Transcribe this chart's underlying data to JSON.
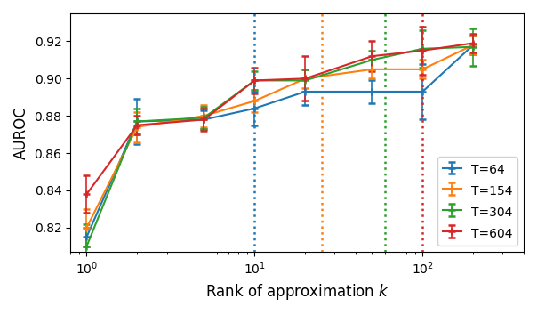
{
  "title": "",
  "xlabel": "Rank of approximation $k$",
  "ylabel": "AUROC",
  "xlim_log": [
    0.8,
    400
  ],
  "ylim": [
    0.807,
    0.935
  ],
  "series": {
    "T=64": {
      "color": "#1f77b4",
      "x": [
        1,
        2,
        5,
        10,
        20,
        50,
        100,
        200
      ],
      "y": [
        0.815,
        0.877,
        0.878,
        0.884,
        0.893,
        0.893,
        0.893,
        0.918
      ],
      "yerr": [
        0.005,
        0.012,
        0.005,
        0.009,
        0.007,
        0.006,
        0.015,
        0.005
      ],
      "vline_x": 10
    },
    "T=154": {
      "color": "#ff7f0e",
      "x": [
        1,
        2,
        5,
        10,
        20,
        50,
        100,
        200
      ],
      "y": [
        0.82,
        0.874,
        0.88,
        0.888,
        0.9,
        0.905,
        0.905,
        0.918
      ],
      "yerr": [
        0.01,
        0.008,
        0.006,
        0.006,
        0.005,
        0.005,
        0.005,
        0.005
      ],
      "vline_x": 25
    },
    "T=304": {
      "color": "#2ca02c",
      "x": [
        1,
        2,
        5,
        10,
        20,
        50,
        100,
        200
      ],
      "y": [
        0.81,
        0.877,
        0.879,
        0.899,
        0.899,
        0.91,
        0.916,
        0.917
      ],
      "yerr": [
        0.012,
        0.007,
        0.006,
        0.005,
        0.006,
        0.005,
        0.01,
        0.01
      ],
      "vline_x": 60
    },
    "T=604": {
      "color": "#d62728",
      "x": [
        1,
        2,
        5,
        10,
        20,
        50,
        100,
        200
      ],
      "y": [
        0.838,
        0.875,
        0.878,
        0.899,
        0.9,
        0.912,
        0.915,
        0.919
      ],
      "yerr": [
        0.01,
        0.005,
        0.006,
        0.007,
        0.012,
        0.008,
        0.013,
        0.005
      ],
      "vline_x": 100
    }
  },
  "yticks": [
    0.82,
    0.84,
    0.86,
    0.88,
    0.9,
    0.92
  ],
  "xticks": [
    1,
    10,
    100
  ],
  "xtick_labels": [
    "$10^0$",
    "$10^1$",
    "$10^2$"
  ],
  "legend_loc": "lower right",
  "figsize": [
    6.04,
    3.54
  ],
  "dpi": 100
}
